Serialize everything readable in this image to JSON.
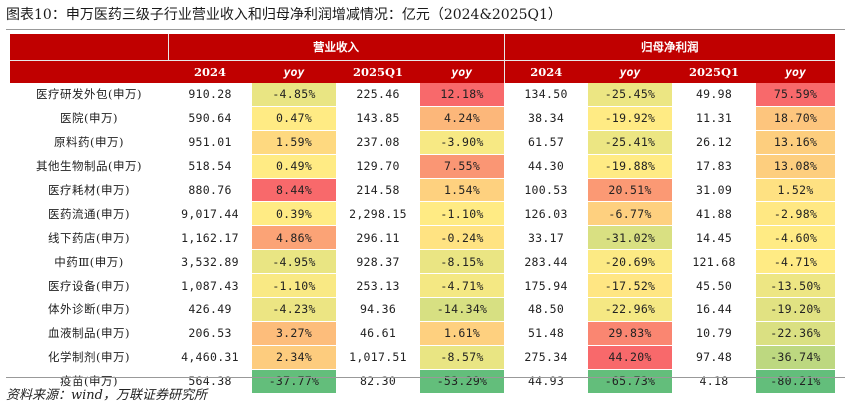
{
  "title": "图表10：申万医药三级子行业营业收入和归母净利润增减情况：亿元（2024&2025Q1）",
  "headers": {
    "group_revenue": "营业收入",
    "group_profit": "归母净利润",
    "col_2024": "2024",
    "col_yoy": "yoy",
    "col_2025q1": "2025Q1"
  },
  "rows": [
    {
      "name": "医疗研发外包(申万)",
      "rev2024": "910.28",
      "rev2024_yoy": "-4.85%",
      "rev2025": "225.46",
      "rev2025_yoy": "12.18%",
      "np2024": "134.50",
      "np2024_yoy": "-25.45%",
      "np2025": "49.98",
      "np2025_yoy": "75.59%"
    },
    {
      "name": "医院(申万)",
      "rev2024": "590.64",
      "rev2024_yoy": "0.47%",
      "rev2025": "143.85",
      "rev2025_yoy": "4.24%",
      "np2024": "38.34",
      "np2024_yoy": "-19.92%",
      "np2025": "11.31",
      "np2025_yoy": "18.70%"
    },
    {
      "name": "原料药(申万)",
      "rev2024": "951.01",
      "rev2024_yoy": "1.59%",
      "rev2025": "237.08",
      "rev2025_yoy": "-3.90%",
      "np2024": "61.57",
      "np2024_yoy": "-25.41%",
      "np2025": "26.12",
      "np2025_yoy": "13.16%"
    },
    {
      "name": "其他生物制品(申万)",
      "rev2024": "518.54",
      "rev2024_yoy": "0.49%",
      "rev2025": "129.70",
      "rev2025_yoy": "7.55%",
      "np2024": "44.30",
      "np2024_yoy": "-19.88%",
      "np2025": "17.83",
      "np2025_yoy": "13.08%"
    },
    {
      "name": "医疗耗材(申万)",
      "rev2024": "880.76",
      "rev2024_yoy": "8.44%",
      "rev2025": "214.58",
      "rev2025_yoy": "1.54%",
      "np2024": "100.53",
      "np2024_yoy": "20.51%",
      "np2025": "31.09",
      "np2025_yoy": "1.52%"
    },
    {
      "name": "医药流通(申万)",
      "rev2024": "9,017.44",
      "rev2024_yoy": "0.39%",
      "rev2025": "2,298.15",
      "rev2025_yoy": "-1.10%",
      "np2024": "126.03",
      "np2024_yoy": "-6.77%",
      "np2025": "41.88",
      "np2025_yoy": "-2.98%"
    },
    {
      "name": "线下药店(申万)",
      "rev2024": "1,162.17",
      "rev2024_yoy": "4.86%",
      "rev2025": "296.11",
      "rev2025_yoy": "-0.24%",
      "np2024": "33.17",
      "np2024_yoy": "-31.02%",
      "np2025": "14.45",
      "np2025_yoy": "-4.60%"
    },
    {
      "name": "中药Ⅲ(申万)",
      "rev2024": "3,532.89",
      "rev2024_yoy": "-4.95%",
      "rev2025": "928.37",
      "rev2025_yoy": "-8.15%",
      "np2024": "283.44",
      "np2024_yoy": "-20.69%",
      "np2025": "121.68",
      "np2025_yoy": "-4.71%"
    },
    {
      "name": "医疗设备(申万)",
      "rev2024": "1,087.43",
      "rev2024_yoy": "-1.10%",
      "rev2025": "253.13",
      "rev2025_yoy": "-4.71%",
      "np2024": "175.94",
      "np2024_yoy": "-17.52%",
      "np2025": "45.50",
      "np2025_yoy": "-13.50%"
    },
    {
      "name": "体外诊断(申万)",
      "rev2024": "426.49",
      "rev2024_yoy": "-4.23%",
      "rev2025": "94.36",
      "rev2025_yoy": "-14.34%",
      "np2024": "48.50",
      "np2024_yoy": "-22.96%",
      "np2025": "16.44",
      "np2025_yoy": "-19.20%"
    },
    {
      "name": "血液制品(申万)",
      "rev2024": "206.53",
      "rev2024_yoy": "3.27%",
      "rev2025": "46.61",
      "rev2025_yoy": "1.61%",
      "np2024": "51.48",
      "np2024_yoy": "29.83%",
      "np2025": "10.79",
      "np2025_yoy": "-22.36%"
    },
    {
      "name": "化学制剂(申万)",
      "rev2024": "4,460.31",
      "rev2024_yoy": "2.34%",
      "rev2025": "1,017.51",
      "rev2025_yoy": "-8.57%",
      "np2024": "275.34",
      "np2024_yoy": "44.20%",
      "np2025": "97.48",
      "np2025_yoy": "-36.74%"
    },
    {
      "name": "疫苗(申万)",
      "rev2024": "564.38",
      "rev2024_yoy": "-37.77%",
      "rev2025": "82.30",
      "rev2025_yoy": "-53.29%",
      "np2024": "44.93",
      "np2024_yoy": "-65.73%",
      "np2025": "4.18",
      "np2025_yoy": "-80.21%"
    }
  ],
  "source": "资料来源：wind，万联证券研究所",
  "colors": {
    "header_bg": "#c00000",
    "high": "#f8696b",
    "mid": "#ffeb84",
    "low": "#63be7b"
  }
}
